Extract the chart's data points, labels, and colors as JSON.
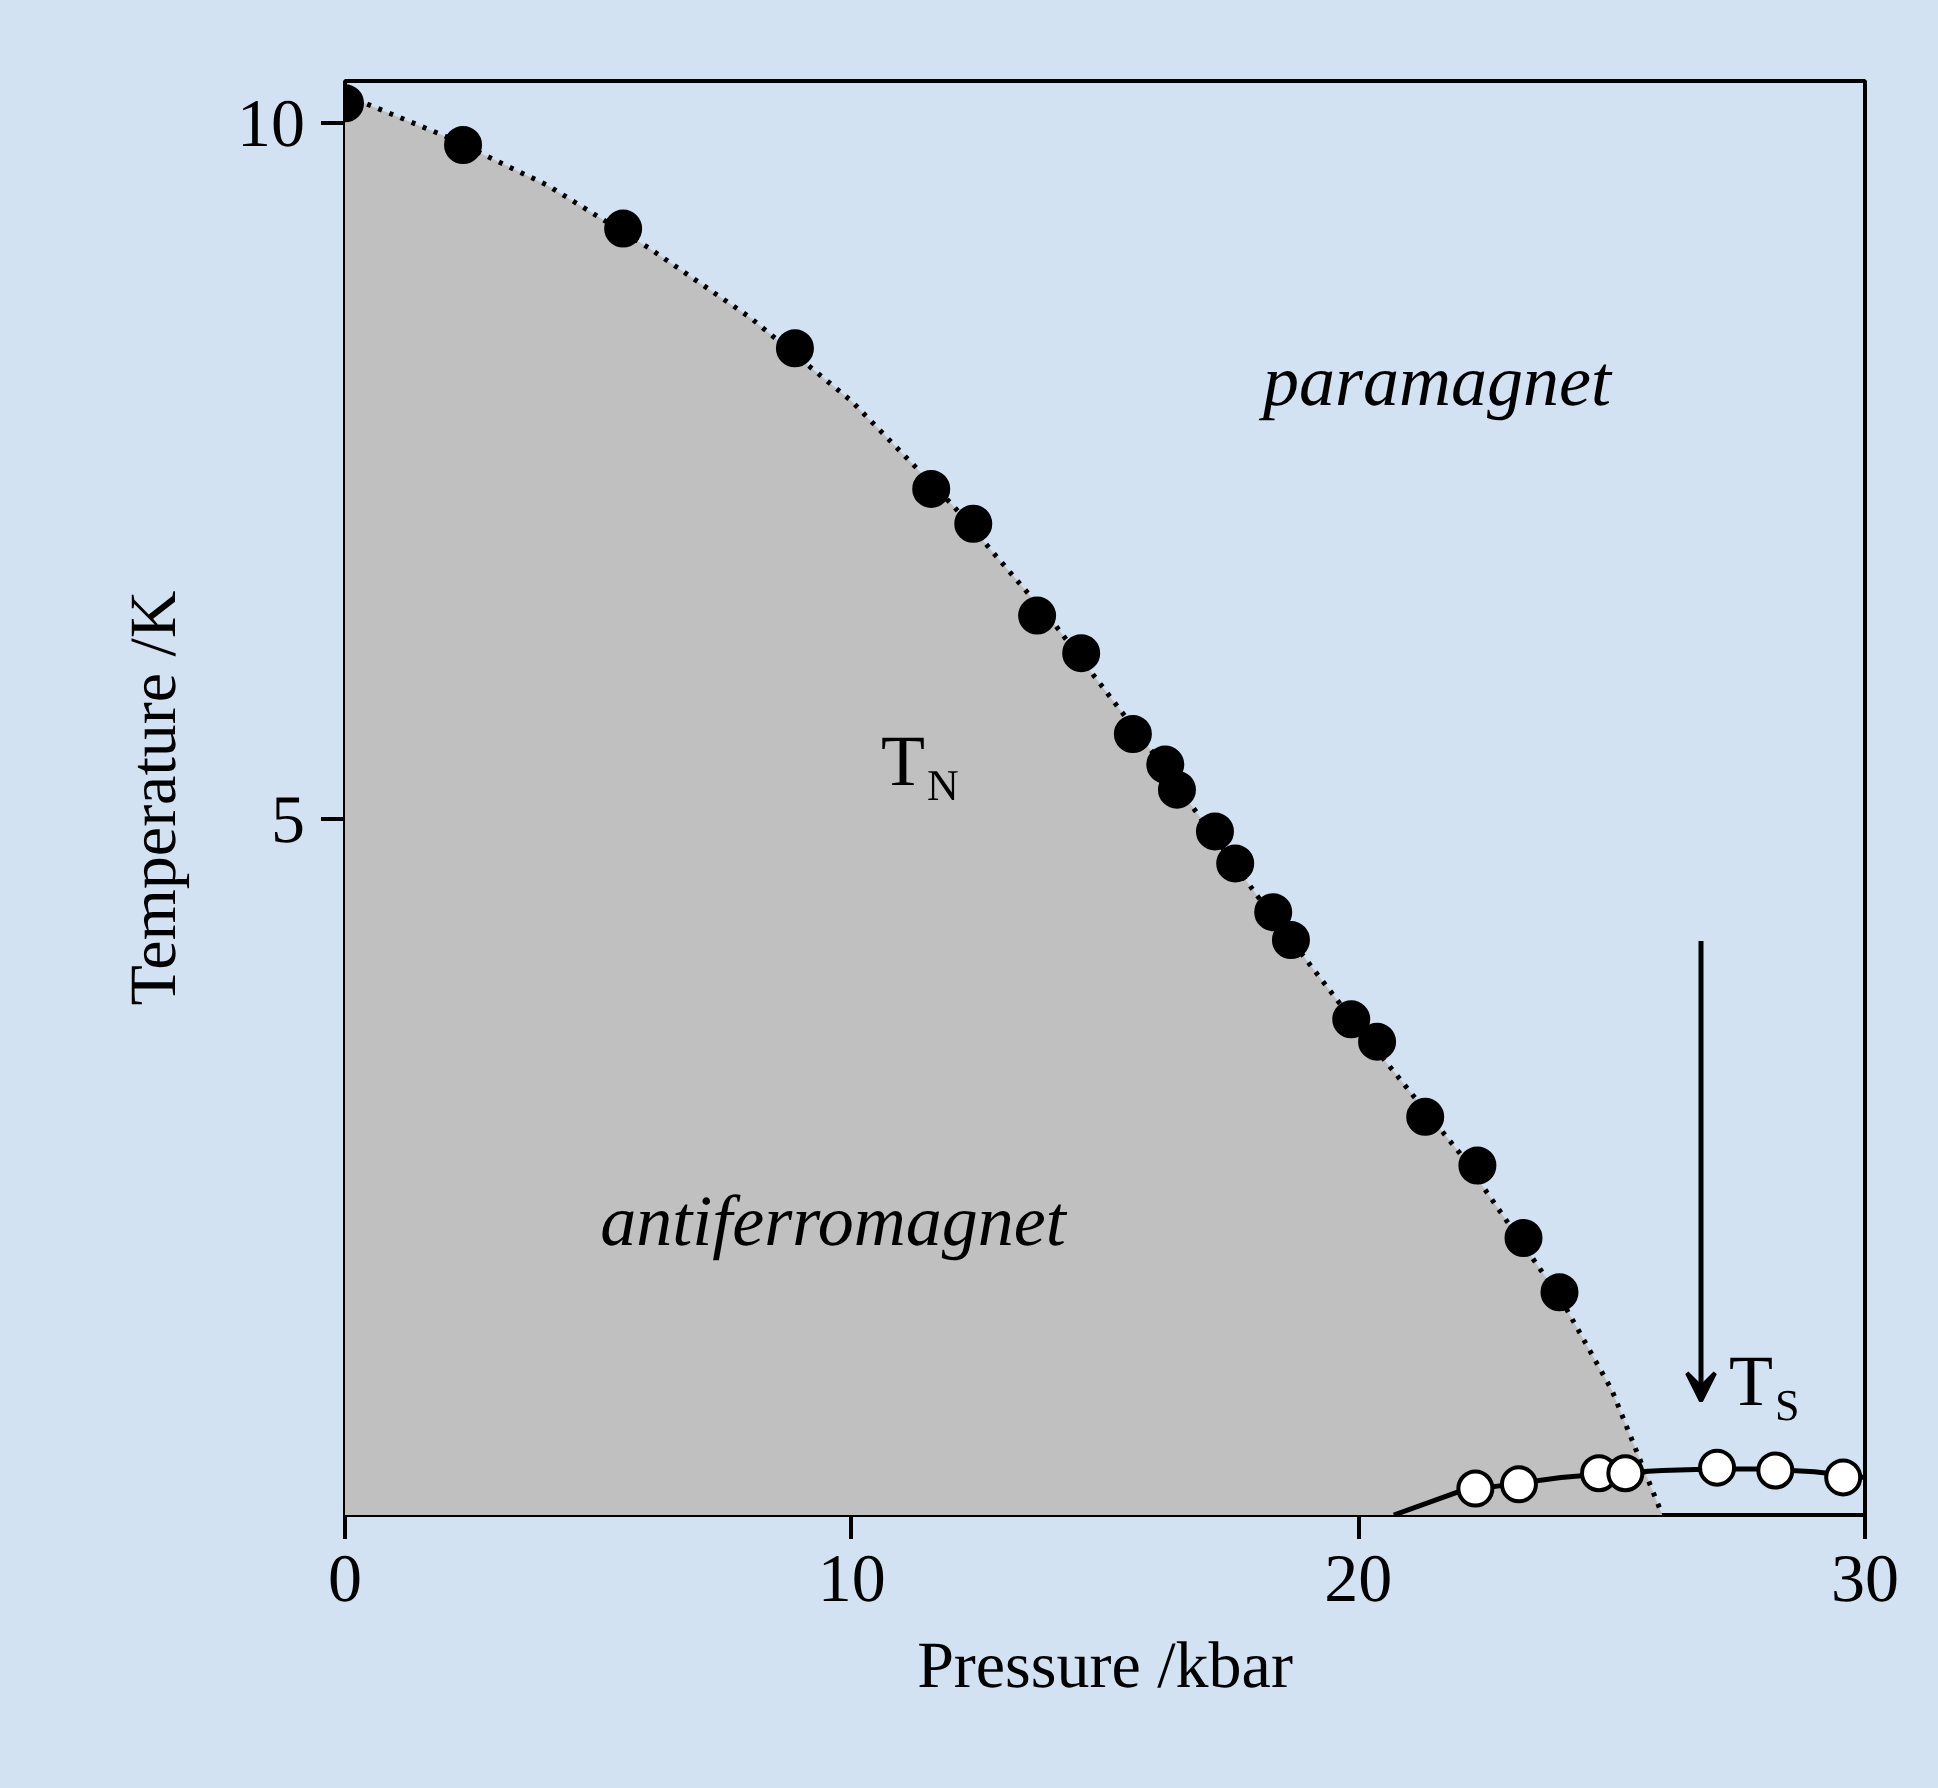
{
  "chart_data": {
    "type": "scatter",
    "xlabel": "Pressure /kbar",
    "ylabel": "Temperature /K",
    "xlim": [
      0,
      30
    ],
    "ylim": [
      0,
      10.3
    ],
    "xticks": [
      0,
      10,
      20,
      30
    ],
    "yticks": [
      5,
      10
    ],
    "grid": false,
    "series": [
      {
        "type": "area",
        "color": "#c0c0c0",
        "line_style": "dotted",
        "x": [
          0,
          2,
          4,
          6,
          8,
          10,
          12,
          14,
          16,
          18,
          20,
          22,
          24,
          25,
          26
        ],
        "values": [
          10.2,
          9.9,
          9.55,
          9.1,
          8.6,
          8.0,
          7.25,
          6.4,
          5.45,
          4.45,
          3.5,
          2.6,
          1.55,
          0.9,
          0
        ]
      },
      {
        "type": "line",
        "color": "#000000",
        "line_style": "solid",
        "x": [
          20.7,
          22,
          23,
          24,
          25,
          26,
          27,
          28,
          29,
          30
        ],
        "values": [
          0,
          0.17,
          0.22,
          0.27,
          0.3,
          0.32,
          0.33,
          0.33,
          0.31,
          0.27
        ]
      },
      {
        "color": "#000000",
        "marker": "circle",
        "x": [
          0,
          2.33,
          5.49,
          8.88,
          11.57,
          12.4,
          13.66,
          14.53,
          15.55,
          16.19,
          16.42,
          17.17,
          17.57,
          18.32,
          18.67,
          19.86,
          20.37,
          21.32,
          22.35,
          23.26,
          23.97
        ],
        "values": [
          10.14,
          9.84,
          9.24,
          8.38,
          7.37,
          7.12,
          6.46,
          6.19,
          5.61,
          5.39,
          5.21,
          4.91,
          4.68,
          4.33,
          4.13,
          3.56,
          3.4,
          2.86,
          2.51,
          1.99,
          1.6
        ]
      },
      {
        "color": "#ffffff",
        "marker": "circle",
        "x": [
          22.31,
          23.17,
          24.75,
          25.27,
          27.08,
          28.23,
          29.57
        ],
        "values": [
          0.19,
          0.22,
          0.3,
          0.3,
          0.34,
          0.32,
          0.27
        ]
      }
    ],
    "annotations": [
      "paramagnet",
      "antiferromagnet",
      "T$_{N}$",
      "T$_{S}$"
    ]
  }
}
